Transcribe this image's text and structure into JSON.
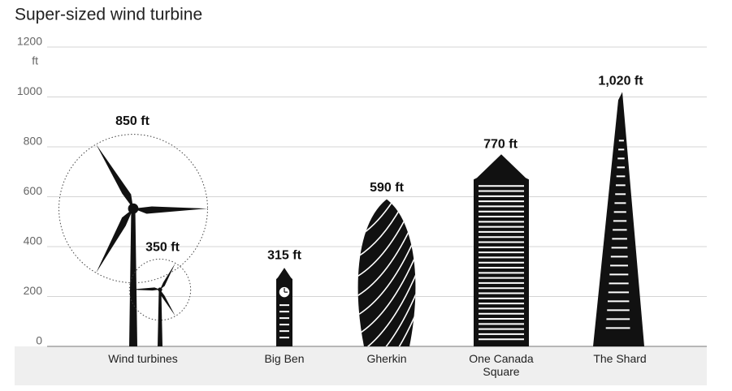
{
  "chart_data": {
    "type": "pictogram",
    "title": "Super-sized wind turbine",
    "y_unit": "ft",
    "categories": [
      "Wind turbines",
      "Big Ben",
      "Gherkin",
      "One Canada Square",
      "The Shard"
    ],
    "values": [
      850,
      315,
      590,
      770,
      1020
    ],
    "value_labels": [
      "850 ft",
      "315 ft",
      "590 ft",
      "770 ft",
      "1,020 ft"
    ],
    "small_turbine": {
      "value": 350,
      "value_label": "350 ft"
    },
    "ylim": [
      0,
      1200
    ],
    "yticks": [
      0,
      200,
      400,
      600,
      800,
      1000,
      1200
    ],
    "grid": true,
    "color": "#111111"
  }
}
